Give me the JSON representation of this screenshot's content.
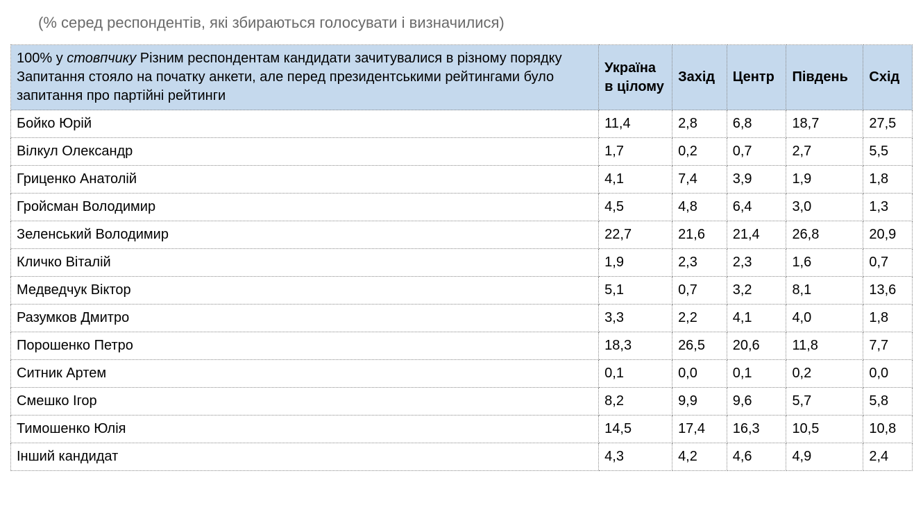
{
  "subtitle": "(% серед респондентів, які збираються голосувати і визначилися)",
  "table": {
    "type": "table",
    "header_bg": "#c5d9ed",
    "border_color": "#888888",
    "font_family": "Arial",
    "header_prefix": "100% у ",
    "header_em": "стовпчику",
    "header_rest": " Різним респондентам кандидати зачитувалися в різному порядку Запитання стояло на початку анкети, але перед президентськими рейтингами було запитання про партійні рейтинги",
    "columns": [
      "Україна в цілому",
      "Захід",
      "Центр",
      "Південь",
      "Схід"
    ],
    "rows": [
      {
        "name": "Бойко Юрій",
        "v": [
          "11,4",
          "2,8",
          "6,8",
          "18,7",
          "27,5"
        ]
      },
      {
        "name": "Вілкул Олександр",
        "v": [
          "1,7",
          "0,2",
          "0,7",
          "2,7",
          "5,5"
        ]
      },
      {
        "name": "Гриценко Анатолій",
        "v": [
          "4,1",
          "7,4",
          "3,9",
          "1,9",
          "1,8"
        ]
      },
      {
        "name": "Гройсман Володимир",
        "v": [
          "4,5",
          "4,8",
          "6,4",
          "3,0",
          "1,3"
        ]
      },
      {
        "name": "Зеленський Володимир",
        "v": [
          "22,7",
          "21,6",
          "21,4",
          "26,8",
          "20,9"
        ]
      },
      {
        "name": "Кличко Віталій",
        "v": [
          "1,9",
          "2,3",
          "2,3",
          "1,6",
          "0,7"
        ]
      },
      {
        "name": "Медведчук Віктор",
        "v": [
          "5,1",
          "0,7",
          "3,2",
          "8,1",
          "13,6"
        ]
      },
      {
        "name": "Разумков Дмитро",
        "v": [
          "3,3",
          "2,2",
          "4,1",
          "4,0",
          "1,8"
        ]
      },
      {
        "name": "Порошенко Петро",
        "v": [
          "18,3",
          "26,5",
          "20,6",
          "11,8",
          "7,7"
        ]
      },
      {
        "name": "Ситник Артем",
        "v": [
          "0,1",
          "0,0",
          "0,1",
          "0,2",
          "0,0"
        ]
      },
      {
        "name": "Смешко Ігор",
        "v": [
          "8,2",
          "9,9",
          "9,6",
          "5,7",
          "5,8"
        ]
      },
      {
        "name": "Тимошенко Юлія",
        "v": [
          "14,5",
          "17,4",
          "16,3",
          "10,5",
          "10,8"
        ]
      },
      {
        "name": "Інший кандидат",
        "v": [
          "4,3",
          "4,2",
          "4,6",
          "4,9",
          "2,4"
        ]
      }
    ]
  }
}
